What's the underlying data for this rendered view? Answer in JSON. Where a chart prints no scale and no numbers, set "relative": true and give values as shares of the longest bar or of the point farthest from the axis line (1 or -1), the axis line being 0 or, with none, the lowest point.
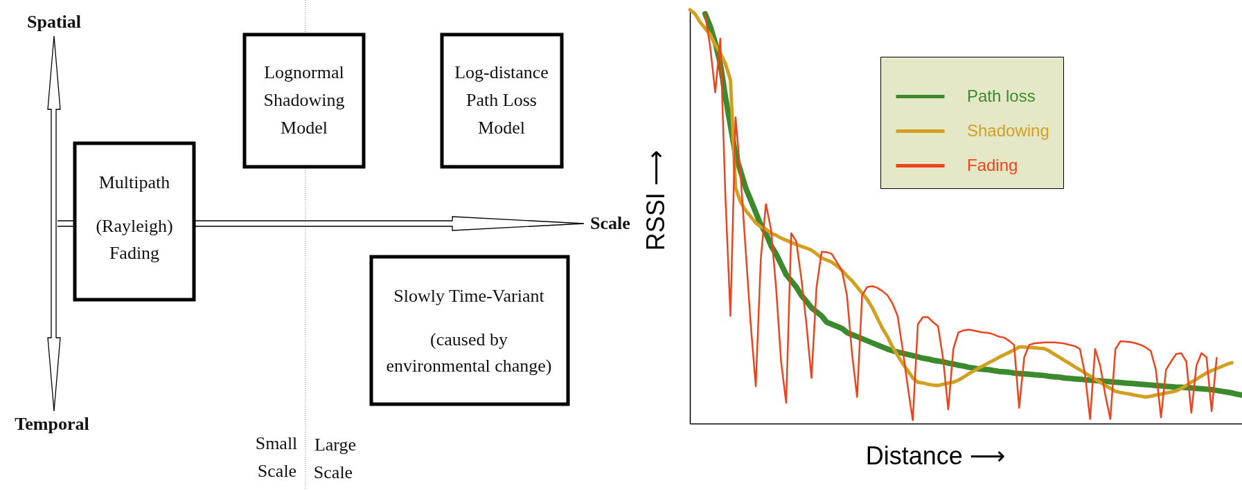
{
  "chart_data": [
    {
      "type": "other",
      "annotations": [
        "Spatial",
        "Temporal",
        "Scale",
        "Multipath",
        "(Rayleigh)",
        "Fading",
        "Lognormal",
        "Shadowing",
        "Model",
        "Log-distance",
        "Path Loss",
        "Model",
        "Slowly Time-Variant",
        "(caused by",
        "environmental change)",
        "Small",
        "Scale",
        "Large",
        "Scale"
      ]
    },
    {
      "type": "line",
      "relative": true,
      "xlabel": "Distance ⟶",
      "ylabel": "RSSI ⟶",
      "legend": "top right",
      "categories": [
        null,
        null,
        null,
        null,
        null,
        null,
        null,
        null,
        null,
        null,
        null,
        null,
        null,
        null,
        null,
        null,
        null,
        null,
        null,
        null,
        null,
        null,
        null,
        null,
        null,
        null,
        null,
        null,
        null,
        null,
        null,
        null,
        null,
        null,
        null,
        null,
        null,
        null,
        null,
        null,
        null,
        null,
        null,
        null,
        null,
        null,
        null,
        null,
        null,
        null,
        null,
        null,
        null,
        null,
        null,
        null,
        null,
        null,
        null,
        null,
        null,
        null,
        null,
        null,
        null,
        null,
        null,
        null,
        null,
        null,
        null,
        null,
        null,
        null,
        null,
        null,
        null,
        null,
        null,
        null,
        null,
        null,
        null,
        null,
        null,
        null,
        null,
        null,
        null,
        null,
        null,
        null,
        null,
        null,
        null,
        null,
        null,
        null,
        null,
        null,
        null,
        null,
        null,
        null,
        null,
        null,
        null,
        null,
        null,
        null
      ],
      "series": [
        {
          "name": "Path loss",
          "color": "#3c8a2e",
          "values": [
            null,
            null,
            null,
            0.99,
            0.96,
            0.92,
            0.87,
            0.79,
            0.72,
            0.65,
            0.61,
            0.57,
            0.54,
            0.51,
            0.48,
            0.46,
            0.43,
            0.41,
            0.385,
            0.36,
            0.345,
            0.33,
            0.31,
            0.295,
            0.28,
            0.27,
            0.26,
            0.245,
            0.24,
            0.235,
            0.23,
            0.22,
            0.215,
            0.21,
            0.205,
            0.2,
            0.195,
            0.19,
            0.185,
            0.18,
            0.176,
            0.173,
            0.17,
            0.167,
            0.164,
            0.161,
            0.158,
            0.156,
            0.153,
            0.151,
            0.149,
            0.146,
            0.144,
            0.141,
            0.139,
            0.136,
            0.134,
            0.132,
            0.131,
            0.13,
            0.128,
            0.126,
            0.125,
            0.124,
            0.122,
            0.121,
            0.12,
            0.119,
            0.118,
            0.117,
            0.116,
            0.114,
            0.113,
            0.112,
            0.11,
            0.109,
            0.108,
            0.107,
            0.106,
            0.105,
            0.104,
            0.103,
            0.102,
            0.101,
            0.1,
            0.099,
            0.098,
            0.097,
            0.096,
            0.095,
            0.094,
            0.093,
            0.092,
            0.091,
            0.09,
            0.089,
            0.088,
            0.088,
            0.087,
            0.086,
            0.085,
            0.084,
            0.083,
            0.082,
            0.08,
            0.078,
            0.076,
            0.074,
            0.071,
            0.069
          ]
        },
        {
          "name": "Shadowing",
          "color": "#d1a021",
          "values": [
            1.0,
            0.99,
            0.97,
            0.955,
            0.94,
            0.915,
            0.895,
            0.87,
            0.83,
            0.57,
            0.535,
            0.515,
            0.5,
            0.485,
            0.475,
            0.47,
            0.46,
            0.455,
            0.448,
            0.443,
            0.438,
            0.433,
            0.428,
            0.424,
            0.419,
            0.41,
            0.4,
            0.395,
            0.39,
            0.381,
            0.37,
            0.357,
            0.345,
            0.33,
            0.315,
            0.3,
            0.28,
            0.255,
            0.23,
            0.21,
            0.185,
            0.165,
            0.145,
            0.128,
            0.11,
            0.1,
            0.098,
            0.095,
            0.093,
            0.092,
            0.095,
            0.098,
            0.1,
            0.105,
            0.112,
            0.12,
            0.127,
            0.134,
            0.14,
            0.147,
            0.153,
            0.16,
            0.166,
            0.172,
            0.178,
            0.185,
            0.185,
            0.184,
            0.183,
            0.182,
            0.181,
            0.175,
            0.167,
            0.16,
            0.152,
            0.145,
            0.137,
            0.13,
            0.122,
            0.115,
            0.107,
            0.1,
            0.092,
            0.085,
            0.078,
            0.075,
            0.073,
            0.071,
            0.068,
            0.066,
            0.064,
            0.066,
            0.069,
            0.071,
            0.074,
            0.076,
            0.079,
            0.085,
            0.092,
            0.1,
            0.107,
            0.115,
            0.122,
            0.128,
            0.133,
            0.138,
            0.143,
            0.147,
            null,
            null
          ]
        },
        {
          "name": "Fading",
          "color": "#f0421a",
          "values": [
            null,
            null,
            null,
            0.99,
            0.91,
            0.8,
            0.93,
            0.55,
            0.26,
            0.74,
            0.6,
            0.42,
            0.24,
            0.09,
            0.4,
            0.53,
            0.47,
            0.33,
            0.15,
            0.05,
            0.46,
            0.44,
            0.35,
            0.24,
            0.11,
            0.33,
            0.415,
            0.414,
            0.41,
            0.39,
            0.37,
            0.31,
            0.17,
            0.064,
            0.31,
            0.33,
            0.332,
            0.328,
            0.32,
            0.31,
            0.29,
            0.26,
            0.18,
            0.09,
            0.008,
            0.24,
            0.257,
            0.257,
            0.245,
            0.235,
            0.155,
            0.034,
            0.18,
            0.22,
            0.225,
            0.227,
            0.225,
            0.222,
            0.22,
            0.219,
            0.215,
            0.21,
            0.208,
            0.2,
            0.19,
            0.038,
            0.16,
            0.19,
            0.194,
            0.195,
            0.196,
            0.196,
            0.196,
            0.195,
            0.193,
            0.19,
            0.187,
            0.18,
            0.12,
            0.011,
            0.18,
            0.14,
            0.07,
            0.011,
            0.18,
            0.199,
            0.198,
            0.197,
            0.194,
            0.19,
            0.184,
            0.175,
            0.13,
            0.015,
            0.13,
            0.15,
            0.168,
            0.17,
            0.15,
            0.026,
            0.14,
            0.17,
            0.16,
            0.03,
            0.159,
            null,
            null,
            null,
            null,
            null
          ]
        }
      ]
    }
  ]
}
